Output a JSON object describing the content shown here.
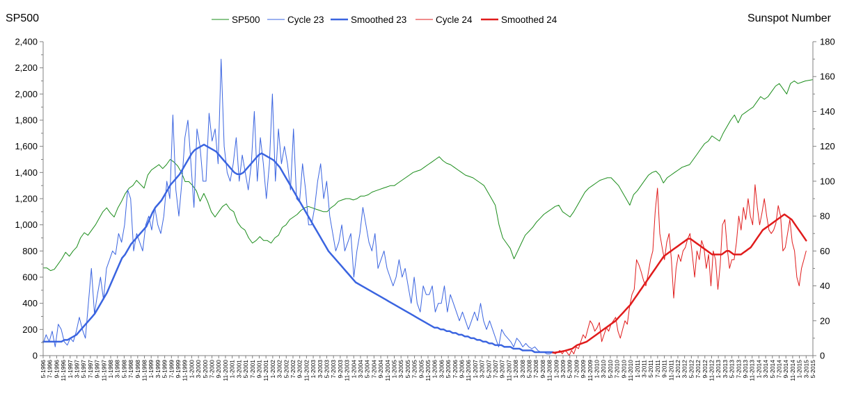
{
  "chart_data": {
    "type": "line",
    "ylabel_left": "SP500",
    "ylabel_right": "Sunspot Number",
    "x_range": [
      "5-1996",
      "5-2015"
    ],
    "left_axis": {
      "min": 0,
      "max": 2400,
      "step": 200,
      "tick_labels": [
        "0",
        "200",
        "400",
        "600",
        "800",
        "1,000",
        "1,200",
        "1,400",
        "1,600",
        "1,800",
        "2,000",
        "2,200",
        "2,400"
      ]
    },
    "right_axis": {
      "min": 0,
      "max": 180,
      "step": 20,
      "tick_labels": [
        "0",
        "20",
        "40",
        "60",
        "80",
        "100",
        "120",
        "140",
        "160",
        "180"
      ]
    },
    "x_tick_labels": [
      "5-1996",
      "7-1996",
      "9-1996",
      "11-1996",
      "1-1997",
      "3-1997",
      "5-1997",
      "7-1997",
      "9-1997",
      "11-1997",
      "1-1998",
      "3-1998",
      "5-1998",
      "7-1998",
      "9-1998",
      "11-1998",
      "1-1999",
      "3-1999",
      "5-1999",
      "7-1999",
      "9-1999",
      "11-1999",
      "1-2000",
      "3-2000",
      "5-2000",
      "7-2000",
      "9-2000",
      "11-2000",
      "1-2001",
      "3-2001",
      "5-2001",
      "7-2001",
      "9-2001",
      "11-2001",
      "1-2002",
      "3-2002",
      "5-2002",
      "7-2002",
      "9-2002",
      "11-2002",
      "1-2003",
      "3-2003",
      "5-2003",
      "7-2003",
      "9-2003",
      "11-2003",
      "1-2004",
      "3-2004",
      "5-2004",
      "7-2004",
      "9-2004",
      "11-2004",
      "1-2005",
      "3-2005",
      "5-2005",
      "7-2005",
      "9-2005",
      "11-2005",
      "1-2006",
      "3-2006",
      "5-2006",
      "7-2006",
      "9-2006",
      "11-2006",
      "1-2007",
      "3-2007",
      "5-2007",
      "7-2007",
      "9-2007",
      "11-2007",
      "1-2008",
      "3-2008",
      "5-2008",
      "7-2008",
      "9-2008",
      "11-2008",
      "1-2009",
      "3-2009",
      "5-2009",
      "7-2009",
      "9-2009",
      "11-2009",
      "1-2010",
      "3-2010",
      "5-2010",
      "7-2010",
      "9-2010",
      "11-2010",
      "1-2011",
      "3-2011",
      "5-2011",
      "7-2011",
      "9-2011",
      "11-2011",
      "1-2012",
      "3-2012",
      "5-2012",
      "7-2012",
      "9-2012",
      "11-2012",
      "1-2013",
      "3-2013",
      "5-2013",
      "7-2013",
      "9-2013",
      "11-2013",
      "1-2014",
      "3-2014",
      "5-2014",
      "7-2014",
      "9-2014",
      "11-2014",
      "1-2015",
      "3-2015",
      "5-2015"
    ],
    "grid": false,
    "legend_position": "top",
    "series": [
      {
        "name": "SP500",
        "axis": "left",
        "color": "#1a8c1a",
        "width": 1,
        "start_index": 0,
        "values": [
          670,
          670,
          650,
          660,
          700,
          740,
          790,
          760,
          800,
          830,
          900,
          940,
          920,
          960,
          1000,
          1050,
          1100,
          1130,
          1090,
          1060,
          1130,
          1180,
          1240,
          1280,
          1300,
          1340,
          1310,
          1280,
          1380,
          1420,
          1440,
          1460,
          1430,
          1460,
          1500,
          1480,
          1450,
          1400,
          1330,
          1330,
          1300,
          1260,
          1180,
          1240,
          1180,
          1100,
          1060,
          1100,
          1140,
          1160,
          1120,
          1100,
          1020,
          980,
          960,
          900,
          860,
          880,
          910,
          880,
          880,
          860,
          900,
          920,
          980,
          1000,
          1040,
          1060,
          1080,
          1110,
          1130,
          1140,
          1130,
          1120,
          1110,
          1100,
          1100,
          1130,
          1150,
          1180,
          1190,
          1200,
          1200,
          1190,
          1200,
          1220,
          1220,
          1230,
          1250,
          1260,
          1270,
          1280,
          1290,
          1300,
          1300,
          1320,
          1340,
          1360,
          1380,
          1400,
          1410,
          1420,
          1440,
          1460,
          1480,
          1500,
          1520,
          1490,
          1470,
          1460,
          1440,
          1420,
          1400,
          1380,
          1370,
          1360,
          1340,
          1320,
          1300,
          1250,
          1200,
          1150,
          1000,
          900,
          860,
          820,
          740,
          800,
          860,
          920,
          950,
          980,
          1020,
          1050,
          1080,
          1100,
          1120,
          1140,
          1150,
          1100,
          1080,
          1060,
          1100,
          1150,
          1200,
          1250,
          1280,
          1300,
          1320,
          1340,
          1350,
          1360,
          1360,
          1330,
          1300,
          1250,
          1200,
          1150,
          1230,
          1260,
          1300,
          1340,
          1380,
          1400,
          1410,
          1380,
          1320,
          1360,
          1380,
          1400,
          1420,
          1440,
          1450,
          1460,
          1500,
          1540,
          1580,
          1620,
          1640,
          1680,
          1660,
          1640,
          1700,
          1750,
          1800,
          1840,
          1780,
          1840,
          1860,
          1880,
          1900,
          1940,
          1980,
          1960,
          1980,
          2020,
          2060,
          2080,
          2040,
          2000,
          2080,
          2100,
          2080,
          2090,
          2100,
          2105,
          2110
        ]
      },
      {
        "name": "Cycle 23",
        "axis": "right",
        "color": "#3a64e0",
        "width": 1,
        "start_index": 0,
        "values": [
          7,
          12,
          8,
          14,
          5,
          18,
          15,
          8,
          6,
          10,
          8,
          14,
          22,
          15,
          10,
          30,
          50,
          24,
          35,
          45,
          32,
          50,
          55,
          60,
          58,
          70,
          65,
          75,
          95,
          90,
          60,
          70,
          65,
          60,
          75,
          80,
          72,
          85,
          75,
          70,
          80,
          100,
          90,
          138,
          95,
          80,
          100,
          125,
          135,
          110,
          85,
          130,
          120,
          100,
          100,
          139,
          123,
          130,
          110,
          170,
          120,
          105,
          100,
          110,
          125,
          100,
          115,
          105,
          95,
          110,
          140,
          100,
          125,
          110,
          90,
          110,
          150,
          100,
          130,
          110,
          120,
          110,
          95,
          130,
          90,
          88,
          110,
          95,
          75,
          75,
          85,
          100,
          110,
          90,
          100,
          80,
          70,
          60,
          65,
          75,
          60,
          65,
          70,
          45,
          60,
          70,
          85,
          75,
          65,
          60,
          70,
          50,
          55,
          60,
          50,
          45,
          40,
          45,
          55,
          45,
          50,
          40,
          30,
          45,
          30,
          25,
          40,
          35,
          35,
          40,
          25,
          30,
          30,
          40,
          25,
          35,
          30,
          25,
          20,
          25,
          20,
          15,
          20,
          25,
          20,
          30,
          20,
          15,
          20,
          15,
          10,
          5,
          15,
          12,
          10,
          8,
          5,
          10,
          8,
          5,
          7,
          5,
          4,
          5,
          3,
          2,
          2,
          1,
          1,
          2
        ]
      },
      {
        "name": "Smoothed 23",
        "axis": "right",
        "color": "#3a64e0",
        "width": 2.5,
        "start_index": 0,
        "values": [
          8,
          8,
          8,
          8,
          8,
          8,
          8,
          9,
          9,
          10,
          11,
          12,
          14,
          16,
          18,
          20,
          22,
          24,
          27,
          30,
          33,
          36,
          40,
          44,
          48,
          52,
          56,
          58,
          61,
          64,
          66,
          68,
          70,
          72,
          74,
          78,
          82,
          85,
          87,
          89,
          92,
          95,
          98,
          100,
          102,
          104,
          107,
          110,
          113,
          116,
          118,
          119,
          120,
          121,
          120,
          119,
          118,
          117,
          115,
          113,
          111,
          109,
          107,
          105,
          104,
          104,
          105,
          107,
          109,
          111,
          113,
          115,
          116,
          115,
          114,
          113,
          112,
          110,
          108,
          105,
          102,
          99,
          96,
          93,
          90,
          87,
          84,
          81,
          78,
          75,
          72,
          69,
          66,
          63,
          60,
          58,
          56,
          54,
          52,
          50,
          48,
          46,
          44,
          42,
          41,
          40,
          39,
          38,
          37,
          36,
          35,
          34,
          33,
          32,
          31,
          30,
          29,
          28,
          27,
          26,
          25,
          24,
          23,
          22,
          21,
          20,
          19,
          18,
          17,
          16,
          16,
          15,
          15,
          14,
          14,
          13,
          13,
          12,
          12,
          11,
          11,
          10,
          10,
          9,
          9,
          8,
          8,
          7,
          7,
          6,
          6,
          6,
          5,
          5,
          5,
          4,
          4,
          4,
          3,
          3,
          3,
          3,
          2,
          2,
          2,
          2,
          2,
          2,
          2
        ]
      },
      {
        "name": "Cycle 24",
        "axis": "right",
        "color": "#e01b1b",
        "width": 1,
        "start_index": 151,
        "values": [
          2,
          1,
          2,
          3,
          1,
          3,
          2,
          0,
          3,
          1,
          5,
          4,
          8,
          12,
          10,
          15,
          20,
          18,
          14,
          16,
          19,
          8,
          12,
          16,
          14,
          18,
          20,
          22,
          14,
          10,
          15,
          20,
          18,
          28,
          35,
          38,
          55,
          52,
          48,
          43,
          40,
          47,
          55,
          60,
          82,
          96,
          70,
          62,
          55,
          65,
          70,
          55,
          33,
          50,
          58,
          54,
          60,
          62,
          67,
          70,
          58,
          45,
          60,
          55,
          66,
          62,
          50,
          58,
          40,
          60,
          55,
          38,
          52,
          75,
          78,
          62,
          50,
          55,
          55,
          65,
          80,
          72,
          85,
          78,
          90,
          80,
          75,
          98,
          85,
          75,
          82,
          90,
          80,
          72,
          70,
          72,
          76,
          86,
          80,
          60,
          62,
          70,
          78,
          65,
          60,
          45,
          40,
          50,
          55,
          60
        ]
      },
      {
        "name": "Smoothed 24",
        "axis": "right",
        "color": "#e01b1b",
        "width": 2.5,
        "start_index": 151,
        "values": [
          1.7,
          1.8,
          2,
          2.2,
          2.5,
          2.8,
          3.2,
          3.6,
          4,
          5,
          6,
          6.5,
          7,
          7.5,
          8,
          9,
          10,
          11,
          12,
          13,
          14,
          15,
          16,
          17,
          18,
          19,
          20,
          21.5,
          23,
          24.5,
          26,
          27.5,
          29,
          31,
          33,
          35,
          37,
          39,
          41,
          43,
          45,
          47,
          49,
          51,
          53,
          55,
          57,
          58,
          59,
          60,
          61,
          62,
          63,
          64,
          65,
          66,
          67,
          67,
          66,
          65,
          64,
          63,
          62,
          61,
          60,
          59,
          58,
          58,
          58,
          58,
          58,
          59,
          60,
          60,
          59,
          58,
          58,
          58,
          58,
          59,
          60,
          61,
          62,
          64,
          66,
          68,
          70,
          72,
          73,
          74,
          75,
          76,
          77,
          78,
          79,
          80,
          81,
          80,
          79,
          78,
          76,
          74,
          72,
          70,
          68,
          66
        ]
      }
    ]
  }
}
